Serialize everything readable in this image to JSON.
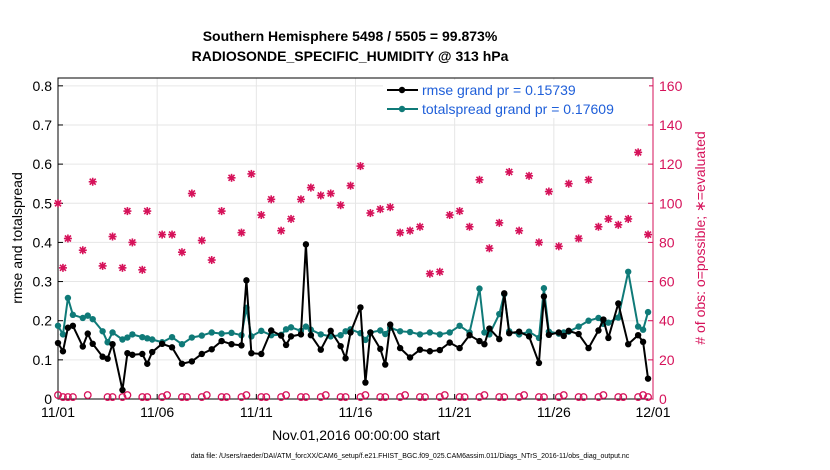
{
  "chart_data": {
    "type": "line",
    "title": "Southern Hemisphere 5498 / 5505 = 99.873%",
    "subtitle": "RADIOSONDE_SPECIFIC_HUMIDITY @ 313 hPa",
    "xlabel": "Nov.01,2016 00:00:00 start",
    "ylabel": "rmse and totalspread",
    "y2label": "# of obs: o=possible; ∗=evaluated",
    "footer": "data file: /Users/raeder/DAI/ATM_forcXX/CAM6_setup/f.e21.FHIST_BGC.f09_025.CAM6assim.011/Diags_NTrS_2016-11/obs_diag_output.nc",
    "x_tick_labels": [
      "11/01",
      "11/06",
      "11/11",
      "11/16",
      "11/21",
      "11/26",
      "12/01"
    ],
    "x_tick_values": [
      0,
      5,
      10,
      15,
      20,
      25,
      30
    ],
    "xlim": [
      0,
      30
    ],
    "ylim": [
      0,
      0.82
    ],
    "y_ticks": [
      "0",
      "0.1",
      "0.2",
      "0.3",
      "0.4",
      "0.5",
      "0.6",
      "0.7",
      "0.8"
    ],
    "y2lim": [
      0,
      164
    ],
    "y2_ticks": [
      "0",
      "20",
      "40",
      "60",
      "80",
      "100",
      "120",
      "140",
      "160"
    ],
    "grid": true,
    "legend_position": "top-right",
    "colors": {
      "rmse": "#000000",
      "spread": "#0f7a78",
      "obs": "#d6125a",
      "legend_text": "#1f5fd9",
      "grid": "#e6e6e6"
    },
    "series": [
      {
        "name": "rmse grand pr = 0.15739",
        "x": [
          0,
          0.25,
          0.5,
          0.75,
          1.25,
          1.5,
          1.75,
          2.25,
          2.5,
          2.75,
          3.25,
          3.5,
          3.75,
          4.25,
          4.5,
          4.75,
          5.25,
          5.75,
          6.25,
          6.75,
          7.25,
          7.75,
          8.25,
          8.75,
          9.25,
          9.5,
          9.75,
          10.25,
          10.75,
          11.25,
          11.5,
          11.75,
          12.25,
          12.5,
          12.75,
          13.25,
          13.75,
          14.25,
          14.5,
          14.75,
          15.25,
          15.5,
          15.75,
          16.25,
          16.5,
          16.75,
          17.25,
          17.75,
          18.25,
          18.75,
          19.25,
          19.75,
          20.25,
          20.75,
          21.25,
          21.5,
          21.75,
          22.25,
          22.5,
          22.75,
          23.25,
          23.75,
          24.25,
          24.5,
          24.75,
          25.25,
          25.5,
          25.75,
          26.25,
          26.75,
          27.25,
          27.5,
          27.75,
          28.25,
          28.75,
          29.25,
          29.5,
          29.75
        ],
        "values": [
          0.143,
          0.122,
          0.182,
          0.187,
          0.134,
          0.167,
          0.141,
          0.108,
          0.103,
          0.14,
          0.023,
          0.117,
          0.113,
          0.115,
          0.09,
          0.12,
          0.141,
          0.132,
          0.09,
          0.096,
          0.115,
          0.127,
          0.148,
          0.14,
          0.137,
          0.303,
          0.117,
          0.115,
          0.175,
          0.162,
          0.138,
          0.16,
          0.165,
          0.395,
          0.163,
          0.126,
          0.174,
          0.135,
          0.104,
          0.17,
          0.234,
          0.042,
          0.17,
          0.128,
          0.088,
          0.19,
          0.13,
          0.106,
          0.126,
          0.122,
          0.125,
          0.144,
          0.13,
          0.163,
          0.148,
          0.14,
          0.18,
          0.153,
          0.27,
          0.168,
          0.172,
          0.16,
          0.092,
          0.262,
          0.164,
          0.17,
          0.161,
          0.174,
          0.166,
          0.13,
          0.175,
          0.203,
          0.156,
          0.244,
          0.14,
          0.163,
          0.146,
          0.052
        ],
        "color": "#000000"
      },
      {
        "name": "totalspread grand pr = 0.17609",
        "x": [
          0,
          0.25,
          0.5,
          0.75,
          1.25,
          1.5,
          1.75,
          2.25,
          2.5,
          2.75,
          3.25,
          3.5,
          3.75,
          4.25,
          4.5,
          4.75,
          5.25,
          5.75,
          6.25,
          6.75,
          7.25,
          7.75,
          8.25,
          8.75,
          9.25,
          9.5,
          9.75,
          10.25,
          10.75,
          11.25,
          11.5,
          11.75,
          12.25,
          12.5,
          12.75,
          13.25,
          13.75,
          14.25,
          14.5,
          14.75,
          15.25,
          15.5,
          15.75,
          16.25,
          16.5,
          16.75,
          17.25,
          17.75,
          18.25,
          18.75,
          19.25,
          19.75,
          20.25,
          20.75,
          21.25,
          21.5,
          21.75,
          22.25,
          22.5,
          22.75,
          23.25,
          23.75,
          24.25,
          24.5,
          24.75,
          25.25,
          25.5,
          25.75,
          26.25,
          26.75,
          27.25,
          27.5,
          27.75,
          28.25,
          28.75,
          29.25,
          29.5,
          29.75
        ],
        "values": [
          0.187,
          0.165,
          0.258,
          0.215,
          0.207,
          0.213,
          0.204,
          0.173,
          0.145,
          0.17,
          0.152,
          0.157,
          0.165,
          0.158,
          0.155,
          0.152,
          0.145,
          0.158,
          0.14,
          0.157,
          0.162,
          0.17,
          0.167,
          0.169,
          0.163,
          0.233,
          0.16,
          0.174,
          0.163,
          0.164,
          0.178,
          0.183,
          0.174,
          0.185,
          0.177,
          0.165,
          0.16,
          0.163,
          0.173,
          0.178,
          0.168,
          0.151,
          0.17,
          0.175,
          0.166,
          0.182,
          0.173,
          0.171,
          0.165,
          0.17,
          0.165,
          0.17,
          0.187,
          0.17,
          0.282,
          0.17,
          0.165,
          0.217,
          0.268,
          0.173,
          0.165,
          0.172,
          0.156,
          0.283,
          0.172,
          0.167,
          0.17,
          0.172,
          0.185,
          0.2,
          0.207,
          0.192,
          0.195,
          0.208,
          0.325,
          0.185,
          0.177,
          0.222
        ],
        "color": "#0f7a78"
      },
      {
        "name": "obs possible",
        "x": [
          0,
          0.5,
          1.5,
          2.5,
          3.5,
          4.5,
          5.5,
          6.5,
          7.5,
          8.5,
          9.5,
          10.5,
          11.5,
          12.5,
          13.5,
          14.5,
          15.5,
          16.5,
          17.5,
          18.5,
          19.5,
          20.5,
          21.5,
          22.5,
          23.5,
          24.5,
          25.5,
          26.5,
          27.5,
          28.5,
          29.5,
          0.25,
          0.75,
          2.75,
          3.25,
          4.25,
          5.25,
          6.25,
          7.25,
          8.25,
          9.25,
          10.25,
          11.25,
          12.25,
          13.25,
          14.25,
          15.25,
          16.25,
          17.25,
          18.25,
          19.25,
          20.25,
          21.25,
          22.25,
          23.25,
          24.25,
          25.25,
          26.25,
          27.25,
          28.25,
          29.25,
          29.75
        ],
        "values": [
          2,
          1,
          2,
          1,
          2,
          1,
          2,
          1,
          2,
          1,
          2,
          1,
          2,
          1,
          2,
          1,
          2,
          1,
          2,
          1,
          2,
          1,
          2,
          1,
          2,
          1,
          2,
          1,
          2,
          1,
          2,
          1,
          1,
          1,
          1,
          1,
          1,
          1,
          1,
          1,
          1,
          1,
          1,
          1,
          1,
          1,
          1,
          1,
          1,
          1,
          1,
          1,
          1,
          1,
          1,
          1,
          1,
          1,
          1,
          1,
          1,
          1
        ],
        "color": "#d6125a"
      },
      {
        "name": "obs evaluated",
        "x": [
          0,
          0.25,
          0.5,
          1.25,
          1.75,
          2.25,
          2.75,
          3.25,
          3.5,
          3.75,
          4.25,
          4.5,
          5.25,
          5.75,
          6.25,
          6.75,
          7.25,
          7.75,
          8.25,
          8.75,
          9.25,
          9.75,
          10.25,
          10.75,
          11.25,
          11.75,
          12.25,
          12.75,
          13.25,
          13.75,
          14.25,
          14.75,
          15.25,
          15.75,
          16.25,
          16.75,
          17.25,
          17.75,
          18.25,
          18.75,
          19.25,
          19.75,
          20.25,
          20.75,
          21.25,
          21.75,
          22.25,
          22.75,
          23.25,
          23.75,
          24.25,
          24.75,
          25.25,
          25.75,
          26.25,
          26.75,
          27.25,
          27.75,
          28.25,
          28.75,
          29.25,
          29.75
        ],
        "values": [
          100,
          67,
          82,
          76,
          111,
          68,
          83,
          67,
          96,
          80,
          66,
          96,
          84,
          84,
          75,
          105,
          81,
          71,
          96,
          113,
          85,
          115,
          94,
          102,
          86,
          92,
          102,
          108,
          104,
          105,
          99,
          109,
          119,
          95,
          97,
          98,
          85,
          86,
          88,
          64,
          65,
          94,
          96,
          88,
          112,
          77,
          90,
          116,
          86,
          114,
          80,
          106,
          78,
          110,
          82,
          112,
          88,
          92,
          89,
          92,
          126,
          84
        ],
        "color": "#d6125a"
      }
    ]
  }
}
